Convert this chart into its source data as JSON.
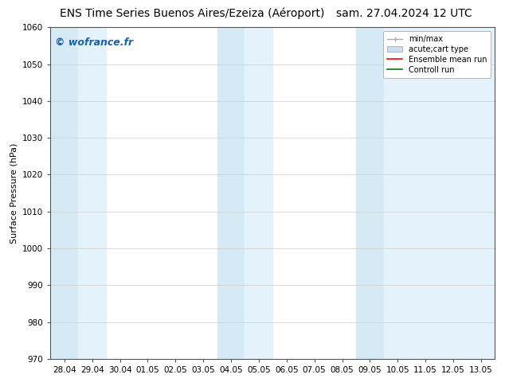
{
  "title_left": "ENS Time Series Buenos Aires/Ezeiza (Aéroport)",
  "title_right": "sam. 27.04.2024 12 UTC",
  "ylabel": "Surface Pressure (hPa)",
  "ylim": [
    970,
    1060
  ],
  "yticks": [
    970,
    980,
    990,
    1000,
    1010,
    1020,
    1030,
    1040,
    1050,
    1060
  ],
  "xtick_labels": [
    "28.04",
    "29.04",
    "30.04",
    "01.05",
    "02.05",
    "03.05",
    "04.05",
    "05.05",
    "06.05",
    "07.05",
    "08.05",
    "09.05",
    "10.05",
    "11.05",
    "12.05",
    "13.05"
  ],
  "xtick_positions": [
    0,
    1,
    2,
    3,
    4,
    5,
    6,
    7,
    8,
    9,
    10,
    11,
    12,
    13,
    14,
    15
  ],
  "xlim": [
    -0.5,
    15.5
  ],
  "shaded_bands": [
    {
      "x_start": -0.5,
      "x_end": 0.5,
      "color": "#d6eaf5"
    },
    {
      "x_start": 0.5,
      "x_end": 1.5,
      "color": "#e4f2fb"
    },
    {
      "x_start": 5.5,
      "x_end": 6.5,
      "color": "#d6eaf5"
    },
    {
      "x_start": 6.5,
      "x_end": 7.5,
      "color": "#e4f2fb"
    },
    {
      "x_start": 10.5,
      "x_end": 11.5,
      "color": "#d6eaf5"
    },
    {
      "x_start": 11.5,
      "x_end": 15.5,
      "color": "#e4f2fb"
    }
  ],
  "watermark_text": "© wofrance.fr",
  "watermark_color": "#1a5fa8",
  "watermark_fontsize": 9,
  "legend_entries": [
    {
      "label": "min/max",
      "type": "errorbar",
      "color": "#aaaaaa"
    },
    {
      "label": "acute;cart type",
      "type": "box",
      "color": "#c8dff0"
    },
    {
      "label": "Ensemble mean run",
      "type": "line",
      "color": "#ff0000"
    },
    {
      "label": "Controll run",
      "type": "line",
      "color": "#007700"
    }
  ],
  "background_color": "#ffffff",
  "grid_color": "#cccccc",
  "title_fontsize": 10,
  "axis_fontsize": 8,
  "tick_fontsize": 7.5
}
